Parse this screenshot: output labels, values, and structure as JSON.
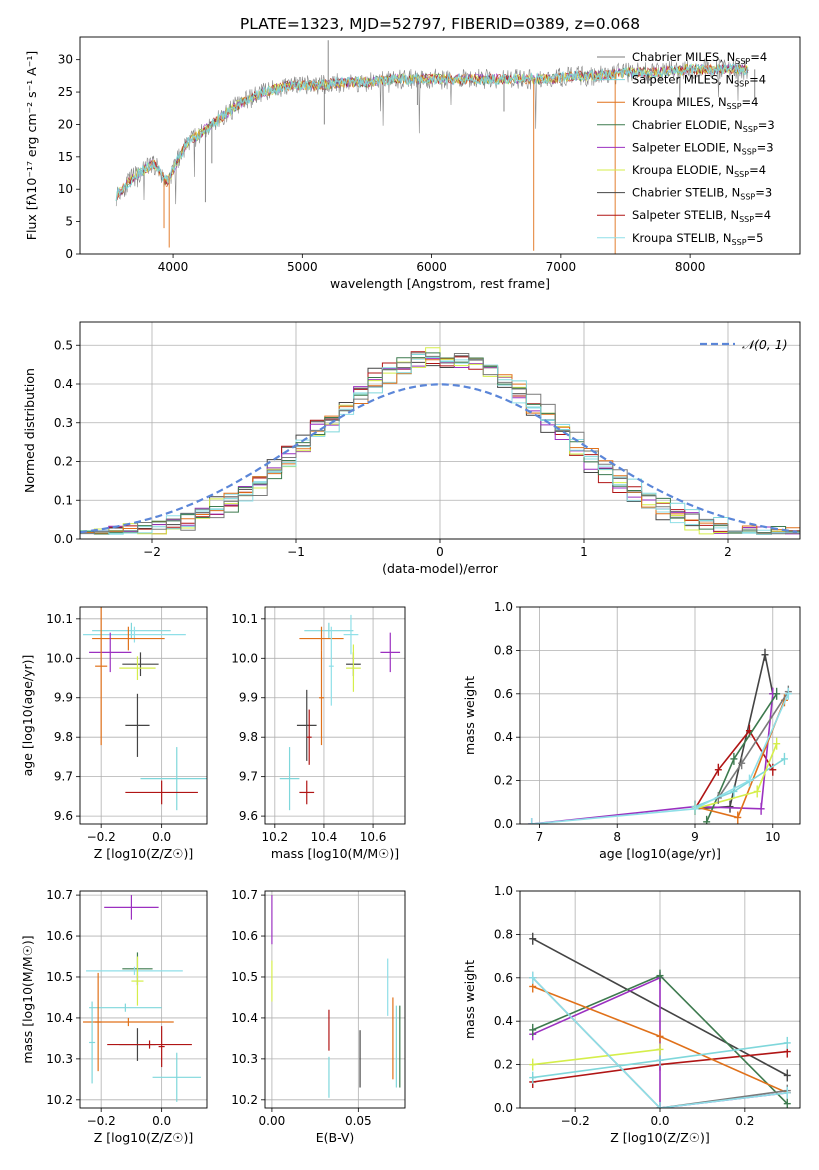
{
  "figure_title": "PLATE=1323, MJD=52797, FIBERID=0389, z=0.068",
  "legend": [
    {
      "label": "Chabrier MILES, N",
      "sub": "SSP",
      "tail": "=4",
      "color": "#7a7a7a"
    },
    {
      "label": "Salpeter MILES, N",
      "sub": "SSP",
      "tail": "=4",
      "color": "#7fd7db"
    },
    {
      "label": "Kroupa MILES, N",
      "sub": "SSP",
      "tail": "=4",
      "color": "#e0711a"
    },
    {
      "label": "Chabrier ELODIE, N",
      "sub": "SSP",
      "tail": "=3",
      "color": "#3d7a4e"
    },
    {
      "label": "Salpeter ELODIE, N",
      "sub": "SSP",
      "tail": "=3",
      "color": "#9b30c0"
    },
    {
      "label": "Kroupa ELODIE, N",
      "sub": "SSP",
      "tail": "=4",
      "color": "#d5ee4a"
    },
    {
      "label": "Chabrier STELIB, N",
      "sub": "SSP",
      "tail": "=3",
      "color": "#444444"
    },
    {
      "label": "Salpeter STELIB, N",
      "sub": "SSP",
      "tail": "=4",
      "color": "#b01515"
    },
    {
      "label": "Kroupa STELIB, N",
      "sub": "SSP",
      "tail": "=5",
      "color": "#8fdfe8"
    }
  ],
  "chart_data": [
    {
      "type": "line",
      "xlabel": "wavelength [Angstrom, rest frame]",
      "ylabel": "Flux [fλ10⁻¹⁷ erg cm⁻² s⁻¹ A⁻¹]",
      "xlim": [
        3280,
        8850
      ],
      "ylim": [
        0,
        33.5
      ],
      "xticks": [
        4000,
        5000,
        6000,
        7000,
        8000
      ],
      "yticks": [
        0,
        5,
        10,
        15,
        20,
        25,
        30
      ],
      "continuum": {
        "x": [
          3560,
          3700,
          3850,
          3950,
          4100,
          4300,
          4500,
          4700,
          4900,
          5100,
          5300,
          5500,
          5700,
          5900,
          6100,
          6300,
          6500,
          6700,
          6900,
          7100,
          7300,
          7500,
          7700,
          8000,
          8300
        ],
        "y": [
          9,
          12,
          14,
          11,
          17,
          20,
          23,
          25,
          26,
          26,
          26.5,
          26.5,
          27,
          27,
          27,
          27,
          27,
          27,
          27,
          27.5,
          27.5,
          28,
          28,
          28.5,
          28.5
        ]
      },
      "spikes": [
        [
          5200,
          33
        ],
        [
          4250,
          8
        ],
        [
          4300,
          14
        ],
        [
          5170,
          20
        ],
        [
          3930,
          4
        ],
        [
          3970,
          1
        ],
        [
          5890,
          23
        ],
        [
          6560,
          22
        ],
        [
          6790,
          0.5
        ],
        [
          7420,
          0
        ],
        [
          8500,
          24
        ]
      ]
    },
    {
      "type": "bar",
      "xlabel": "(data-model)/error",
      "ylabel": "Normed distribution",
      "xlim": [
        -2.5,
        2.5
      ],
      "ylim": [
        0,
        0.56
      ],
      "xticks": [
        -2,
        -1,
        0,
        1,
        2
      ],
      "yticks": [
        0.0,
        0.1,
        0.2,
        0.3,
        0.4,
        0.5
      ],
      "reference_curve": {
        "name": "𝒩(0, 1)",
        "mean": 0,
        "sigma": 1
      },
      "bin_width": 0.1
    },
    {
      "type": "scatter",
      "xlabel": "Z [log10(Z/Z☉)]",
      "ylabel": "age  [log10(age/yr)]",
      "xlim": [
        -0.27,
        0.15
      ],
      "ylim": [
        9.58,
        10.13
      ],
      "xticks": [
        -0.2,
        0.0
      ],
      "yticks": [
        9.6,
        9.7,
        9.8,
        9.9,
        10.0,
        10.1
      ],
      "points": [
        {
          "x": -0.1,
          "y": 10.07,
          "xerr": 0.13,
          "yerr": 0.02,
          "series": 1
        },
        {
          "x": -0.09,
          "y": 10.06,
          "xerr": 0.17,
          "yerr": 0.02,
          "series": 8
        },
        {
          "x": -0.11,
          "y": 10.05,
          "xerr": 0.12,
          "yerr": 0.03,
          "series": 2
        },
        {
          "x": -0.17,
          "y": 10.015,
          "xerr": 0.07,
          "yerr": 0.05,
          "series": 4
        },
        {
          "x": -0.07,
          "y": 9.985,
          "xerr": 0.06,
          "yerr": 0.03,
          "series": 6
        },
        {
          "x": -0.08,
          "y": 9.975,
          "xerr": 0.06,
          "yerr": 0.03,
          "series": 5
        },
        {
          "x": -0.14,
          "y": 10.0,
          "xerr": 0.02,
          "yerr": 0.04,
          "series": 9
        },
        {
          "x": -0.08,
          "y": 9.83,
          "xerr": 0.04,
          "yerr": 0.08,
          "series": 6
        },
        {
          "x": 0.05,
          "y": 9.695,
          "xerr": 0.12,
          "yerr": 0.08,
          "series": 1
        },
        {
          "x": 0.0,
          "y": 9.66,
          "xerr": 0.12,
          "yerr": 0.03,
          "series": 7
        },
        {
          "x": -0.23,
          "y": 9.98,
          "xerr": 0.02,
          "yerr": 0.12,
          "series": 9
        },
        {
          "x": -0.2,
          "y": 9.98,
          "xerr": 0.02,
          "yerr": 0.2,
          "series": 2
        }
      ]
    },
    {
      "type": "scatter",
      "xlabel": "mass [log10(M/M☉)]",
      "ylabel": "",
      "xlim": [
        10.16,
        10.73
      ],
      "ylim": [
        9.58,
        10.13
      ],
      "xticks": [
        10.2,
        10.4,
        10.6
      ],
      "yticks": [
        9.6,
        9.7,
        9.8,
        9.9,
        10.0,
        10.1
      ],
      "points": [
        {
          "x": 10.42,
          "y": 10.07,
          "xerr": 0.1,
          "yerr": 0.02,
          "series": 1
        },
        {
          "x": 10.51,
          "y": 10.06,
          "xerr": 0.03,
          "yerr": 0.05,
          "series": 8
        },
        {
          "x": 10.39,
          "y": 10.05,
          "xerr": 0.09,
          "yerr": 0.03,
          "series": 2
        },
        {
          "x": 10.67,
          "y": 10.015,
          "xerr": 0.04,
          "yerr": 0.05,
          "series": 4
        },
        {
          "x": 10.52,
          "y": 9.985,
          "xerr": 0.03,
          "yerr": 0.03,
          "series": 6
        },
        {
          "x": 10.52,
          "y": 9.975,
          "xerr": 0.03,
          "yerr": 0.06,
          "series": 5
        },
        {
          "x": 10.33,
          "y": 9.83,
          "xerr": 0.04,
          "yerr": 0.09,
          "series": 6
        },
        {
          "x": 10.34,
          "y": 9.8,
          "xerr": 0.01,
          "yerr": 0.07,
          "series": 7
        },
        {
          "x": 10.26,
          "y": 9.695,
          "xerr": 0.04,
          "yerr": 0.08,
          "series": 1
        },
        {
          "x": 10.33,
          "y": 9.66,
          "xerr": 0.03,
          "yerr": 0.03,
          "series": 7
        },
        {
          "x": 10.39,
          "y": 9.9,
          "xerr": 0.01,
          "yerr": 0.12,
          "series": 2
        },
        {
          "x": 10.43,
          "y": 9.98,
          "xerr": 0.01,
          "yerr": 0.1,
          "series": 8
        }
      ]
    },
    {
      "type": "line",
      "xlabel": "age  [log10(age/yr)]",
      "ylabel": "mass weight",
      "xlim": [
        6.75,
        10.35
      ],
      "ylim": [
        0,
        1.0
      ],
      "xticks": [
        7,
        8,
        9,
        10
      ],
      "yticks": [
        0.0,
        0.2,
        0.4,
        0.6,
        0.8,
        1.0
      ],
      "series": [
        {
          "series": 6,
          "x": [
            9.0,
            9.45,
            9.9,
            10.0
          ],
          "y": [
            0.07,
            0.08,
            0.78,
            0.6
          ]
        },
        {
          "series": 7,
          "x": [
            9.0,
            9.3,
            9.7,
            10.0
          ],
          "y": [
            0.07,
            0.25,
            0.43,
            0.25
          ]
        },
        {
          "series": 4,
          "x": [
            6.9,
            9.0,
            9.85,
            10.0
          ],
          "y": [
            0.0,
            0.08,
            0.07,
            0.6
          ]
        },
        {
          "series": 3,
          "x": [
            9.15,
            9.5,
            10.05
          ],
          "y": [
            0.01,
            0.3,
            0.6
          ]
        },
        {
          "series": 2,
          "x": [
            9.0,
            9.55,
            10.15
          ],
          "y": [
            0.08,
            0.03,
            0.57
          ]
        },
        {
          "series": 1,
          "x": [
            9.0,
            9.5,
            10.15
          ],
          "y": [
            0.08,
            0.15,
            0.3
          ]
        },
        {
          "series": 5,
          "x": [
            9.0,
            9.8,
            10.05
          ],
          "y": [
            0.07,
            0.15,
            0.37
          ]
        },
        {
          "series": 0,
          "x": [
            9.3,
            9.6,
            10.2
          ],
          "y": [
            0.12,
            0.28,
            0.61
          ]
        },
        {
          "series": 8,
          "x": [
            6.9,
            9.0,
            9.7,
            10.2
          ],
          "y": [
            0.0,
            0.07,
            0.2,
            0.6
          ]
        }
      ]
    },
    {
      "type": "scatter",
      "xlabel": "Z [log10(Z/Z☉)]",
      "ylabel": "mass [log10(M/M☉)]",
      "xlim": [
        -0.27,
        0.15
      ],
      "ylim": [
        10.18,
        10.71
      ],
      "xticks": [
        -0.2,
        0.0
      ],
      "yticks": [
        10.2,
        10.3,
        10.4,
        10.5,
        10.6,
        10.7
      ],
      "points": [
        {
          "x": -0.1,
          "y": 10.67,
          "xerr": 0.09,
          "yerr": 0.03,
          "series": 4
        },
        {
          "x": -0.08,
          "y": 10.52,
          "xerr": 0.05,
          "yerr": 0.04,
          "series": 3
        },
        {
          "x": -0.09,
          "y": 10.515,
          "xerr": 0.16,
          "yerr": 0.01,
          "series": 8
        },
        {
          "x": -0.08,
          "y": 10.49,
          "xerr": 0.02,
          "yerr": 0.06,
          "series": 5
        },
        {
          "x": -0.12,
          "y": 10.425,
          "xerr": 0.12,
          "yerr": 0.01,
          "series": 1
        },
        {
          "x": -0.11,
          "y": 10.39,
          "xerr": 0.15,
          "yerr": 0.01,
          "series": 2
        },
        {
          "x": -0.08,
          "y": 10.335,
          "xerr": 0.06,
          "yerr": 0.04,
          "series": 6
        },
        {
          "x": -0.04,
          "y": 10.335,
          "xerr": 0.14,
          "yerr": 0.01,
          "series": 7
        },
        {
          "x": 0.05,
          "y": 10.255,
          "xerr": 0.08,
          "yerr": 0.06,
          "series": 1
        },
        {
          "x": -0.23,
          "y": 10.34,
          "xerr": 0.01,
          "yerr": 0.1,
          "series": 1
        },
        {
          "x": -0.21,
          "y": 10.39,
          "xerr": 0.01,
          "yerr": 0.12,
          "series": 2
        },
        {
          "x": 0.0,
          "y": 10.33,
          "xerr": 0.01,
          "yerr": 0.05,
          "series": 7
        }
      ]
    },
    {
      "type": "scatter",
      "xlabel": "E(B-V)",
      "ylabel": "",
      "xlim": [
        -0.004,
        0.077
      ],
      "ylim": [
        10.18,
        10.71
      ],
      "xticks": [
        0.0,
        0.05
      ],
      "yticks": [
        10.2,
        10.3,
        10.4,
        10.5,
        10.6,
        10.7
      ],
      "points": [
        {
          "x": 0.0,
          "y": 10.64,
          "xerr": 0,
          "yerr": 0.06,
          "series": 4
        },
        {
          "x": 0.0,
          "y": 10.49,
          "xerr": 0,
          "yerr": 0.05,
          "series": 5
        },
        {
          "x": 0.033,
          "y": 10.37,
          "xerr": 0,
          "yerr": 0.05,
          "series": 7
        },
        {
          "x": 0.033,
          "y": 10.255,
          "xerr": 0,
          "yerr": 0.05,
          "series": 1
        },
        {
          "x": 0.051,
          "y": 10.3,
          "xerr": 0,
          "yerr": 0.07,
          "series": 6
        },
        {
          "x": 0.067,
          "y": 10.475,
          "xerr": 0,
          "yerr": 0.07,
          "series": 8
        },
        {
          "x": 0.07,
          "y": 10.35,
          "xerr": 0,
          "yerr": 0.1,
          "series": 2
        },
        {
          "x": 0.074,
          "y": 10.33,
          "xerr": 0,
          "yerr": 0.1,
          "series": 3
        },
        {
          "x": 0.072,
          "y": 10.33,
          "xerr": 0,
          "yerr": 0.1,
          "series": 1
        }
      ]
    },
    {
      "type": "line",
      "xlabel": "Z [log10(Z/Z☉)]",
      "ylabel": "mass weight",
      "xlim": [
        -0.33,
        0.33
      ],
      "ylim": [
        0,
        1.0
      ],
      "xticks": [
        -0.2,
        0.0,
        0.2
      ],
      "yticks": [
        0.0,
        0.2,
        0.4,
        0.6,
        0.8,
        1.0
      ],
      "series": [
        {
          "series": 6,
          "x": [
            -0.3,
            0.3
          ],
          "y": [
            0.78,
            0.15
          ]
        },
        {
          "series": 7,
          "x": [
            -0.3,
            0.0,
            0.3
          ],
          "y": [
            0.12,
            0.2,
            0.26
          ]
        },
        {
          "series": 4,
          "x": [
            -0.3,
            0.0,
            0.0,
            0.3
          ],
          "y": [
            0.34,
            0.6,
            0.0,
            0.07
          ]
        },
        {
          "series": 3,
          "x": [
            -0.3,
            0.0,
            0.3
          ],
          "y": [
            0.36,
            0.61,
            0.02
          ]
        },
        {
          "series": 2,
          "x": [
            -0.3,
            0.0,
            0.3
          ],
          "y": [
            0.56,
            0.33,
            0.07
          ]
        },
        {
          "series": 1,
          "x": [
            -0.3,
            0.0,
            0.3
          ],
          "y": [
            0.14,
            0.22,
            0.3
          ]
        },
        {
          "series": 5,
          "x": [
            -0.3,
            0.0
          ],
          "y": [
            0.2,
            0.27
          ]
        },
        {
          "series": 0,
          "x": [
            -0.3,
            0.0,
            0.3
          ],
          "y": [
            0.6,
            0.0,
            0.08
          ]
        },
        {
          "series": 8,
          "x": [
            -0.3,
            0.0,
            0.3
          ],
          "y": [
            0.6,
            0.0,
            0.07
          ]
        }
      ]
    }
  ]
}
